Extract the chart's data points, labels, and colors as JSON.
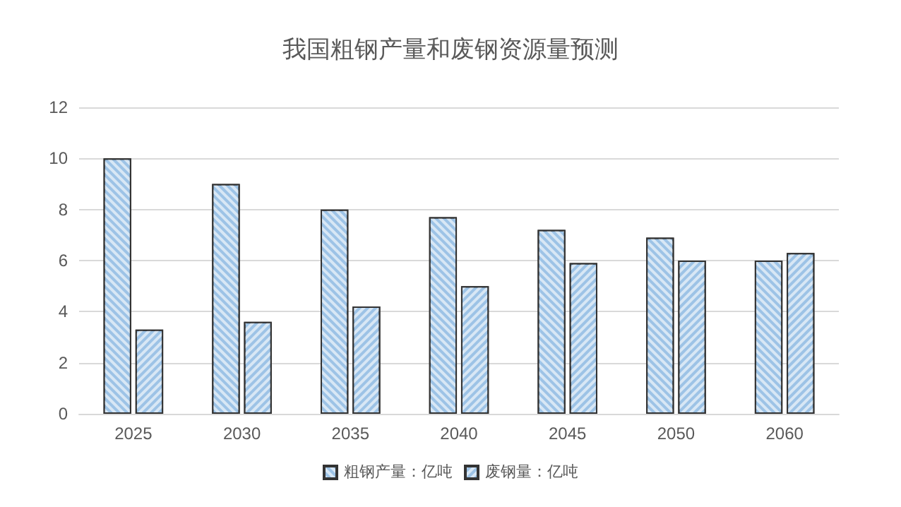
{
  "chart_data": {
    "type": "bar",
    "title": "我国粗钢产量和废钢资源量预测",
    "categories": [
      "2025",
      "2030",
      "2035",
      "2040",
      "2045",
      "2050",
      "2060"
    ],
    "series": [
      {
        "name": "粗钢产量：亿吨",
        "color": "#9dc3e6",
        "values": [
          10,
          9,
          8,
          7.7,
          7.2,
          6.9,
          6
        ]
      },
      {
        "name": "废钢量：亿吨",
        "color": "#9dc3e6",
        "values": [
          3.3,
          3.6,
          4.2,
          5,
          5.9,
          6,
          6.3
        ]
      }
    ],
    "ylim": [
      0,
      12
    ],
    "yticks": [
      0,
      2,
      4,
      6,
      8,
      10,
      12
    ],
    "grid": "y",
    "legend": "bottom"
  }
}
